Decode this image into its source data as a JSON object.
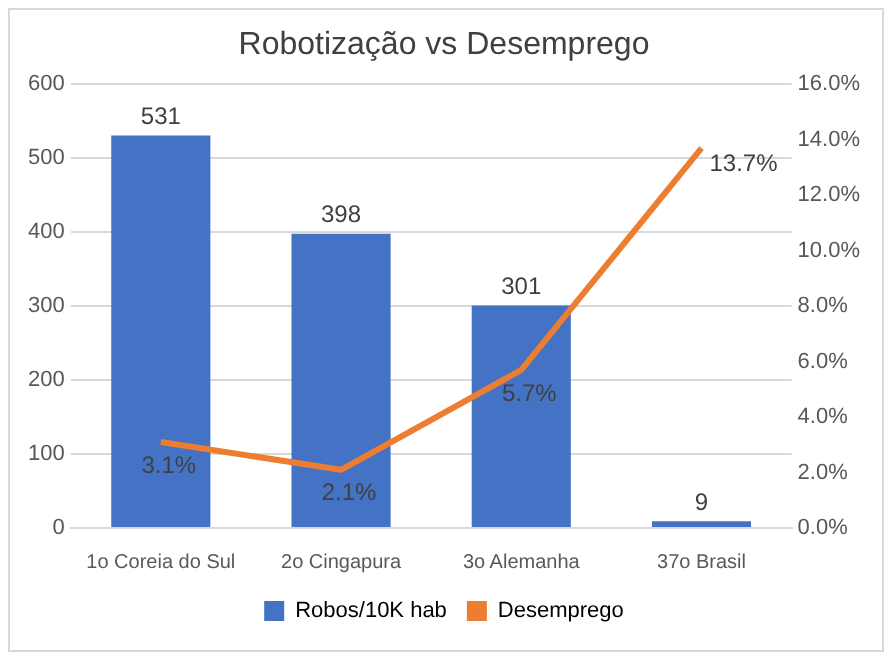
{
  "chart_data": {
    "type": "bar",
    "title": "Robotização vs Desemprego",
    "categories": [
      "1o Coreia do Sul",
      "2o Cingapura",
      "3o Alemanha",
      "37o Brasil"
    ],
    "series": [
      {
        "name": "Robos/10K hab",
        "color": "#4472c4",
        "values": [
          531,
          398,
          301,
          9
        ],
        "value_labels": [
          "531",
          "398",
          "301",
          "9"
        ]
      },
      {
        "name": "Desemprego",
        "type": "line",
        "axis": "y2",
        "color": "#ed7d31",
        "values": [
          3.1,
          2.1,
          5.7,
          13.7
        ],
        "value_labels": [
          "3.1%",
          "2.1%",
          "5.7%",
          "13.7%"
        ]
      }
    ],
    "ylim": [
      0,
      600
    ],
    "yticks": [
      0,
      100,
      200,
      300,
      400,
      500,
      600
    ],
    "y2lim": [
      0,
      16
    ],
    "y2ticks": [
      {
        "value": 0,
        "label": "0.0%"
      },
      {
        "value": 2,
        "label": "2.0%"
      },
      {
        "value": 4,
        "label": "4.0%"
      },
      {
        "value": 6,
        "label": "6.0%"
      },
      {
        "value": 8,
        "label": "8.0%"
      },
      {
        "value": 10,
        "label": "10.0%"
      },
      {
        "value": 12,
        "label": "12.0%"
      },
      {
        "value": 14,
        "label": "14.0%"
      },
      {
        "value": 16,
        "label": "16.0%"
      }
    ],
    "grid": "y",
    "legend": "bottom",
    "marker": "none",
    "line_style": "solid"
  }
}
